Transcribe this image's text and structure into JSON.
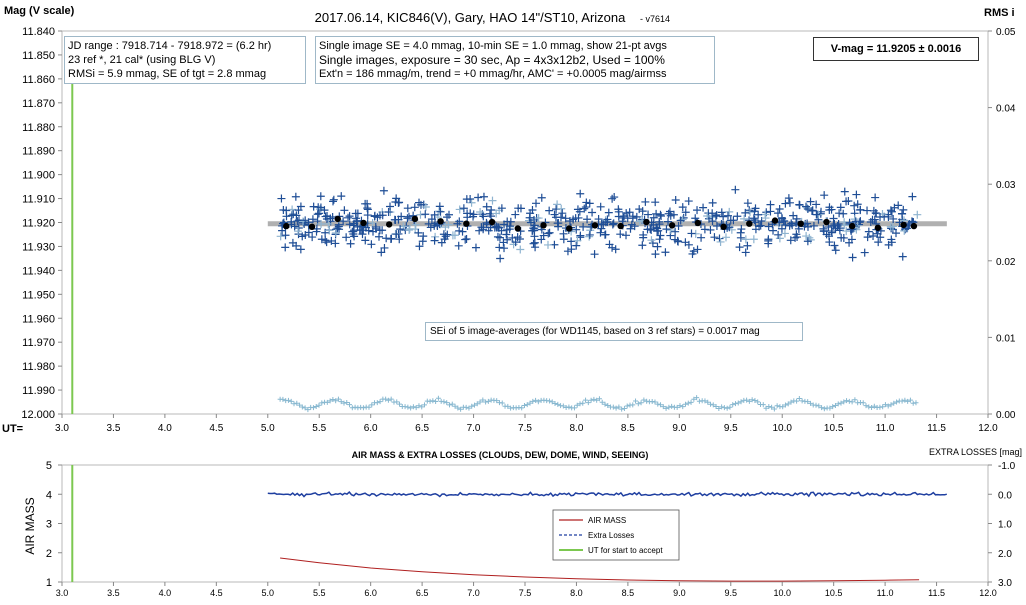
{
  "chart_data": [
    {
      "type": "scatter",
      "title": "2017.06.14,  KIC846(V),  Gary,  HAO  14\"/ST10,  Arizona",
      "version": "- v7614",
      "ylabel": "Mag (V scale)",
      "y2label": "RMS i",
      "xlabel": "UT=",
      "xlim": [
        3.0,
        12.0
      ],
      "ylim": [
        11.84,
        12.0
      ],
      "y_inverted": true,
      "y2lim": [
        0.0,
        0.05
      ],
      "x_ticks": [
        "3.0",
        "3.5",
        "4.0",
        "4.5",
        "5.0",
        "5.5",
        "6.0",
        "6.5",
        "7.0",
        "7.5",
        "8.0",
        "8.5",
        "9.0",
        "9.5",
        "10.0",
        "10.5",
        "11.0",
        "11.5",
        "12.0"
      ],
      "y_ticks": [
        "11.840",
        "11.850",
        "11.860",
        "11.870",
        "11.880",
        "11.890",
        "11.900",
        "11.910",
        "11.920",
        "11.930",
        "11.940",
        "11.950",
        "11.960",
        "11.970",
        "11.980",
        "11.990",
        "12.000"
      ],
      "y2_ticks": [
        "0.05",
        "0.04",
        "0.03",
        "0.02",
        "0.01",
        "0.00"
      ],
      "colors": {
        "single": "#1f4e96",
        "single_light": "#8fb4d0",
        "avg": "#000000",
        "rms": "#88b8d0",
        "fit": "#b0b0b0",
        "start_line": "#7cc850"
      },
      "start_ut": 3.1,
      "single_images": {
        "ut_range": [
          5.12,
          11.33
        ],
        "mean_mag": 11.9205,
        "rms_scatter_mag": 0.0059,
        "count": 700
      },
      "image_averages": {
        "ut": [
          5.18,
          5.43,
          5.68,
          5.93,
          6.18,
          6.43,
          6.68,
          6.93,
          7.18,
          7.43,
          7.68,
          7.93,
          8.18,
          8.43,
          8.68,
          8.93,
          9.18,
          9.43,
          9.68,
          9.93,
          10.18,
          10.43,
          10.68,
          10.93,
          11.18,
          11.28
        ],
        "mag": [
          11.9215,
          11.9218,
          11.9185,
          11.9202,
          11.9208,
          11.9185,
          11.9195,
          11.9205,
          11.9198,
          11.9225,
          11.9212,
          11.9225,
          11.9212,
          11.9215,
          11.9198,
          11.9212,
          11.9202,
          11.9218,
          11.9205,
          11.9192,
          11.9205,
          11.9198,
          11.9215,
          11.9222,
          11.921,
          11.9215
        ]
      },
      "fit_line": {
        "ut": [
          5.0,
          11.6
        ],
        "mag": 11.9205
      },
      "rms_i": {
        "mean": 0.0013,
        "amplitude": 0.0005,
        "ut_range": [
          5.12,
          11.3
        ]
      },
      "annotations": {
        "jd_box": [
          "JD range : 7918.714 - 7918.972 = (6.2 hr)",
          "23 ref *, 21 cal* (using BLG V)",
          "RMSi = 5.9 mmag, SE of tgt = 2.8 mmag"
        ],
        "info_box": [
          "Single image SE = 4.0 mmag, 10-min SE = 1.0 mmag, show 21-pt avgs",
          "Single images, exposure = 30 sec, Ap = 4x3x12b2, Used = 100%",
          "Ext'n = 186 mmag/m, trend = +0 mmag/hr, AMC' = +0.0005 mag/airmss"
        ],
        "vmag_box": "V-mag = 11.9205 ± 0.0016",
        "sei_box": "SEi of 5 image-averages (for WD1145, based on 3 ref stars) = 0.0017 mag"
      }
    },
    {
      "type": "line",
      "title": "AIR MASS & EXTRA LOSSES (CLOUDS, DEW, DOME, WIND, SEEING)",
      "ylabel": "AIR MASS",
      "y2label": "EXTRA LOSSES [mag]",
      "xlim": [
        3.0,
        12.0
      ],
      "ylim": [
        1,
        5
      ],
      "y2lim": [
        -1.0,
        3.0
      ],
      "x_ticks": [
        "3.0",
        "3.5",
        "4.0",
        "4.5",
        "5.0",
        "5.5",
        "6.0",
        "6.5",
        "7.0",
        "7.5",
        "8.0",
        "8.5",
        "9.0",
        "9.5",
        "10.0",
        "10.5",
        "11.0",
        "11.5",
        "12.0"
      ],
      "y_ticks": [
        "5",
        "4",
        "3",
        "2",
        "1"
      ],
      "y2_ticks": [
        "-1.0",
        "0.0",
        "1.0",
        "2.0",
        "3.0"
      ],
      "series": [
        {
          "name": "AIR MASS",
          "color": "#b02020",
          "x": [
            5.12,
            5.5,
            6.0,
            6.5,
            7.0,
            7.5,
            8.0,
            8.5,
            9.0,
            9.5,
            10.0,
            10.5,
            11.0,
            11.33
          ],
          "y": [
            1.82,
            1.66,
            1.48,
            1.35,
            1.25,
            1.17,
            1.11,
            1.07,
            1.04,
            1.03,
            1.03,
            1.04,
            1.06,
            1.08
          ]
        },
        {
          "name": "Extra Losses",
          "color": "#1f3fa0",
          "x": [
            5.0,
            11.6
          ],
          "y": [
            0.0,
            0.0
          ]
        },
        {
          "name": "UT for start to accept",
          "color": "#7cc850",
          "x": [
            3.1,
            3.1
          ],
          "y": [
            1,
            5
          ]
        }
      ],
      "legend_position": "center"
    }
  ]
}
